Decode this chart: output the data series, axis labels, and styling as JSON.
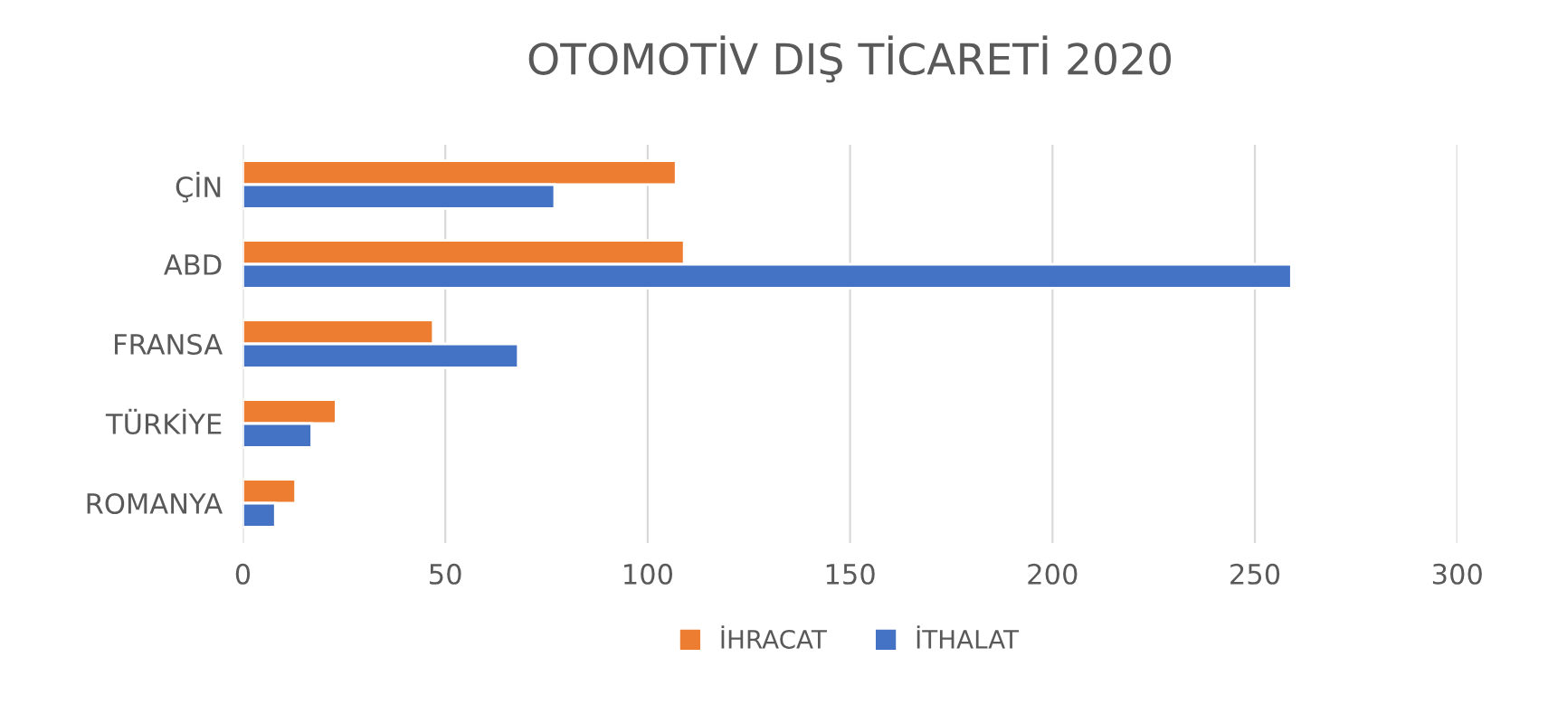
{
  "chart_data": {
    "type": "bar",
    "orientation": "horizontal",
    "title": "OTOMOTİV DIŞ TİCARETİ 2020",
    "categories": [
      "ÇİN",
      "ABD",
      "FRANSA",
      "TÜRKİYE",
      "ROMANYA"
    ],
    "series": [
      {
        "name": "İHRACAT",
        "color": "#ed7d31",
        "values": [
          107,
          109,
          47,
          23,
          13
        ]
      },
      {
        "name": "İTHALAT",
        "color": "#4472c4",
        "values": [
          77,
          259,
          68,
          17,
          8
        ]
      }
    ],
    "xlim": [
      0,
      300
    ],
    "xticks": [
      0,
      50,
      100,
      150,
      200,
      250,
      300
    ],
    "grid": "x",
    "legend": "bottom"
  }
}
